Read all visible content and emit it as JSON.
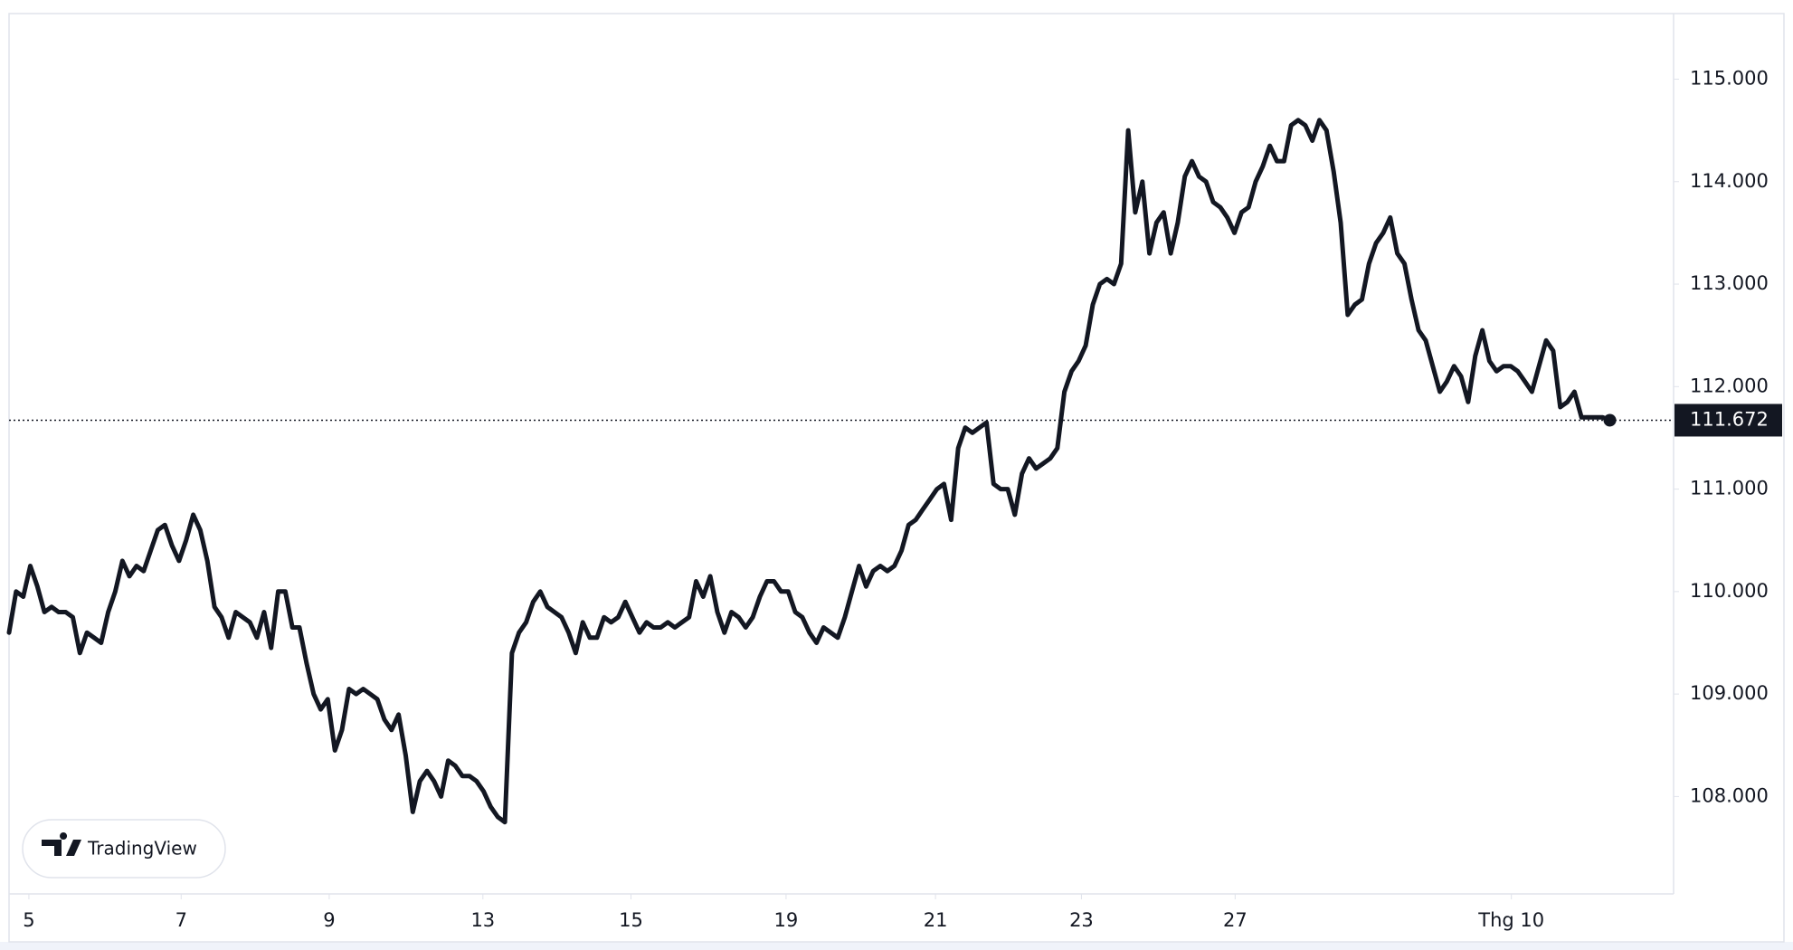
{
  "chart_data": {
    "type": "line",
    "values": [
      109600,
      110000,
      109950,
      110250,
      110050,
      109800,
      109850,
      109800,
      109800,
      109750,
      109400,
      109600,
      109550,
      109500,
      109800,
      110000,
      110300,
      110150,
      110250,
      110200,
      110400,
      110600,
      110650,
      110450,
      110300,
      110500,
      110750,
      110600,
      110300,
      109850,
      109750,
      109550,
      109800,
      109750,
      109700,
      109550,
      109800,
      109450,
      110000,
      110000,
      109650,
      109650,
      109300,
      109000,
      108850,
      108950,
      108450,
      108650,
      109050,
      109000,
      109050,
      109000,
      108950,
      108750,
      108650,
      108800,
      108400,
      107850,
      108150,
      108250,
      108150,
      108000,
      108350,
      108300,
      108200,
      108200,
      108150,
      108050,
      107900,
      107800,
      107750,
      109400,
      109600,
      109700,
      109900,
      110000,
      109850,
      109800,
      109750,
      109600,
      109400,
      109700,
      109550,
      109550,
      109750,
      109700,
      109750,
      109900,
      109750,
      109600,
      109700,
      109650,
      109650,
      109700,
      109650,
      109700,
      109750,
      110100,
      109950,
      110150,
      109800,
      109600,
      109800,
      109750,
      109650,
      109750,
      109950,
      110100,
      110100,
      110000,
      110000,
      109800,
      109750,
      109600,
      109500,
      109650,
      109600,
      109550,
      109750,
      110000,
      110250,
      110050,
      110200,
      110250,
      110200,
      110250,
      110400,
      110650,
      110700,
      110800,
      110900,
      111000,
      111050,
      110700,
      111400,
      111600,
      111550,
      111600,
      111650,
      111050,
      111000,
      111000,
      110750,
      111150,
      111300,
      111200,
      111250,
      111300,
      111400,
      111950,
      112150,
      112250,
      112400,
      112800,
      113000,
      113050,
      113000,
      113200,
      114500,
      113700,
      114000,
      113300,
      113600,
      113700,
      113300,
      113600,
      114050,
      114200,
      114050,
      114000,
      113800,
      113750,
      113650,
      113500,
      113700,
      113750,
      114000,
      114150,
      114350,
      114200,
      114200,
      114550,
      114600,
      114550,
      114400,
      114600,
      114500,
      114100,
      113600,
      112700,
      112800,
      112850,
      113200,
      113400,
      113500,
      113650,
      113300,
      113200,
      112850,
      112550,
      112450,
      112200,
      111950,
      112050,
      112200,
      112100,
      111850,
      112300,
      112550,
      112250,
      112150,
      112200,
      112200,
      112150,
      112050,
      111950,
      112200,
      112450,
      112350,
      111800,
      111850,
      111950,
      111700,
      111700,
      111700,
      111700,
      111672
    ],
    "color": "#131722",
    "xlim": [
      0,
      235
    ],
    "xticks": [
      {
        "value": 2.8,
        "label": "5"
      },
      {
        "value": 24.3,
        "label": "7"
      },
      {
        "value": 45.2,
        "label": "9"
      },
      {
        "value": 66.9,
        "label": "13"
      },
      {
        "value": 87.8,
        "label": "15"
      },
      {
        "value": 109.7,
        "label": "19"
      },
      {
        "value": 130.8,
        "label": "21"
      },
      {
        "value": 151.4,
        "label": "23"
      },
      {
        "value": 173.1,
        "label": "27"
      },
      {
        "value": 212.1,
        "label": "Thg 10"
      }
    ],
    "ylim": [
      107050,
      115640
    ],
    "yticks": [
      {
        "value": 108000,
        "label": "108.000"
      },
      {
        "value": 109000,
        "label": "109.000"
      },
      {
        "value": 110000,
        "label": "110.000"
      },
      {
        "value": 111000,
        "label": "111.000"
      },
      {
        "value": 112000,
        "label": "112.000"
      },
      {
        "value": 113000,
        "label": "113.000"
      },
      {
        "value": 114000,
        "label": "114.000"
      },
      {
        "value": 115000,
        "label": "115.000"
      }
    ],
    "last_price": {
      "value": 111672,
      "label": "111.672"
    },
    "watermark": "TradingView"
  }
}
